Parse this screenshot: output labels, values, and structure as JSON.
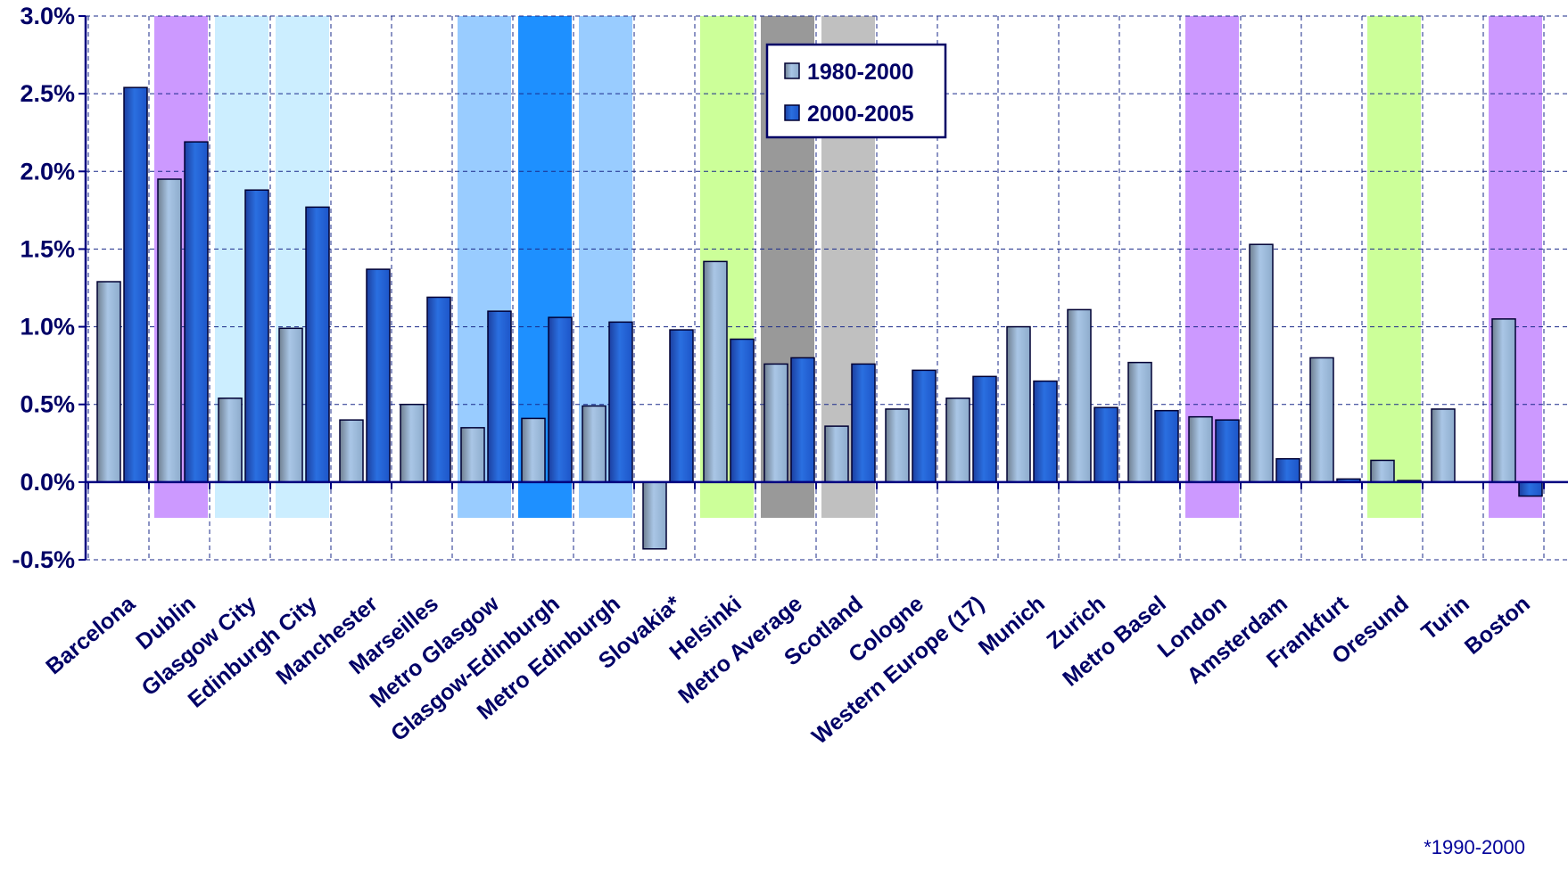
{
  "chart_data": {
    "type": "bar",
    "ylim": [
      -0.5,
      3.0
    ],
    "y_ticks": [
      "3.0%",
      "2.5%",
      "2.0%",
      "1.5%",
      "1.0%",
      "0.5%",
      "0.0%",
      "-0.5%"
    ],
    "y_tick_values": [
      3.0,
      2.5,
      2.0,
      1.5,
      1.0,
      0.5,
      0.0,
      -0.5
    ],
    "grid": true,
    "legend_position": "top-center",
    "categories": [
      "Barcelona",
      "Dublin",
      "Glasgow City",
      "Edinburgh City",
      "Manchester",
      "Marseilles",
      "Metro Glasgow",
      "Glasgow-Edinburgh",
      "Metro Edinburgh",
      "Slovakia*",
      "Helsinki",
      "Metro Average",
      "Scotland",
      "Cologne",
      "Western Europe (17)",
      "Munich",
      "Zurich",
      "Metro Basel",
      "London",
      "Amsterdam",
      "Frankfurt",
      "Oresund",
      "Turin",
      "Boston"
    ],
    "series": [
      {
        "name": "1980-2000",
        "color": "#a9c6e6",
        "values": [
          1.29,
          1.95,
          0.54,
          0.99,
          0.4,
          0.5,
          0.35,
          0.41,
          0.49,
          -0.43,
          1.42,
          0.76,
          0.36,
          0.47,
          0.54,
          1.0,
          1.11,
          0.77,
          0.42,
          1.53,
          0.8,
          0.14,
          0.47,
          1.05
        ]
      },
      {
        "name": "2000-2005",
        "color": "#2a6fe0",
        "values": [
          2.54,
          2.19,
          1.88,
          1.77,
          1.37,
          1.19,
          1.1,
          1.06,
          1.03,
          0.98,
          0.92,
          0.8,
          0.76,
          0.72,
          0.68,
          0.65,
          0.48,
          0.46,
          0.4,
          0.15,
          0.02,
          0.01,
          null,
          -0.09
        ]
      }
    ],
    "highlights": [
      {
        "category": "Dublin",
        "color": "#cc99ff"
      },
      {
        "category": "Glasgow City",
        "color": "#cceeff"
      },
      {
        "category": "Edinburgh City",
        "color": "#cceeff"
      },
      {
        "category": "Metro Glasgow",
        "color": "#99ccff"
      },
      {
        "category": "Glasgow-Edinburgh",
        "color": "#1e90ff"
      },
      {
        "category": "Metro Edinburgh",
        "color": "#99ccff"
      },
      {
        "category": "Helsinki",
        "color": "#ccff99"
      },
      {
        "category": "Metro Average",
        "color": "#999999"
      },
      {
        "category": "Scotland",
        "color": "#c0c0c0"
      },
      {
        "category": "London",
        "color": "#cc99ff"
      },
      {
        "category": "Oresund",
        "color": "#ccff99"
      },
      {
        "category": "Boston",
        "color": "#cc99ff"
      }
    ],
    "footnote": "*1990-2000"
  }
}
